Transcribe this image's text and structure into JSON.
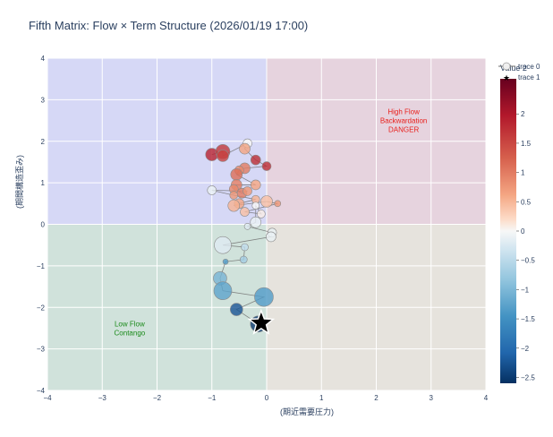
{
  "chart_data": {
    "type": "scatter",
    "title": "Fifth Matrix: Flow × Term Structure (2026/01/19 17:00)",
    "xlabel": "(期近需要圧力)",
    "ylabel": "(期間構造歪み)",
    "xlim": [
      -4,
      4
    ],
    "ylim": [
      -4,
      4
    ],
    "xticks": [
      "−4",
      "−3",
      "−2",
      "−1",
      "0",
      "1",
      "2",
      "3",
      "4"
    ],
    "yticks": [
      "−4",
      "−3",
      "−2",
      "−1",
      "0",
      "1",
      "2",
      "3",
      "4"
    ],
    "grid": true,
    "quadrants": [
      {
        "name": "upper-left",
        "x": [
          -4,
          0
        ],
        "y": [
          0,
          4
        ],
        "color": "#d6d8f6"
      },
      {
        "name": "upper-right",
        "x": [
          0,
          4
        ],
        "y": [
          0,
          4
        ],
        "color": "#e6d3de"
      },
      {
        "name": "lower-left",
        "x": [
          -4,
          0
        ],
        "y": [
          -4,
          0
        ],
        "color": "#d0e2db"
      },
      {
        "name": "lower-right",
        "x": [
          0,
          4
        ],
        "y": [
          -4,
          0
        ],
        "color": "#e6e3dd"
      }
    ],
    "annotations": [
      {
        "lines": [
          "High Flow",
          "Backwardation",
          "DANGER"
        ],
        "x": 2.5,
        "y": 2.5,
        "color": "#e8201c"
      },
      {
        "lines": [
          "Low Flow",
          "Contango"
        ],
        "x": -2.5,
        "y": -2.5,
        "color": "#1a8a1a"
      }
    ],
    "colorbar": {
      "title": "Value 2",
      "min": -2.6,
      "max": 2.6,
      "ticks": [
        "2",
        "1.5",
        "1",
        "0.5",
        "0",
        "−0.5",
        "−1",
        "−1.5",
        "−2",
        "−2.5"
      ],
      "tick_values": [
        2,
        1.5,
        1,
        0.5,
        0,
        -0.5,
        -1,
        -1.5,
        -2,
        -2.5
      ]
    },
    "legend": {
      "position": "top-right",
      "entries": [
        "trace 0",
        "trace 1"
      ]
    },
    "series": [
      {
        "name": "trace 0",
        "mode": "lines+markers",
        "line_color": "#6b6b6b",
        "points": [
          {
            "x": -1.0,
            "y": 1.68,
            "value": 1.8,
            "size": 14
          },
          {
            "x": -0.8,
            "y": 1.75,
            "value": 1.6,
            "size": 16
          },
          {
            "x": -0.8,
            "y": 1.65,
            "value": 1.5,
            "size": 13
          },
          {
            "x": -0.35,
            "y": 1.95,
            "value": 0.0,
            "size": 10
          },
          {
            "x": -0.4,
            "y": 1.82,
            "value": 0.7,
            "size": 12
          },
          {
            "x": -0.2,
            "y": 1.55,
            "value": 1.7,
            "size": 11
          },
          {
            "x": 0.0,
            "y": 1.4,
            "value": 1.7,
            "size": 10
          },
          {
            "x": -0.4,
            "y": 1.35,
            "value": 1.0,
            "size": 12
          },
          {
            "x": -0.5,
            "y": 1.3,
            "value": 0.9,
            "size": 10
          },
          {
            "x": -0.55,
            "y": 1.2,
            "value": 1.1,
            "size": 13
          },
          {
            "x": -0.2,
            "y": 0.95,
            "value": 0.7,
            "size": 11
          },
          {
            "x": -0.55,
            "y": 0.95,
            "value": 1.0,
            "size": 12
          },
          {
            "x": -0.6,
            "y": 0.85,
            "value": 0.9,
            "size": 10
          },
          {
            "x": -0.45,
            "y": 0.75,
            "value": 1.0,
            "size": 11
          },
          {
            "x": -0.35,
            "y": 0.8,
            "value": 0.8,
            "size": 10
          },
          {
            "x": -1.0,
            "y": 0.82,
            "value": -0.1,
            "size": 10
          },
          {
            "x": -0.6,
            "y": 0.7,
            "value": 0.8,
            "size": 9
          },
          {
            "x": -0.2,
            "y": 0.6,
            "value": 0.6,
            "size": 9
          },
          {
            "x": -0.5,
            "y": 0.5,
            "value": 0.7,
            "size": 11
          },
          {
            "x": -0.6,
            "y": 0.45,
            "value": 0.6,
            "size": 13
          },
          {
            "x": 0.0,
            "y": 0.55,
            "value": 0.5,
            "size": 13
          },
          {
            "x": 0.2,
            "y": 0.5,
            "value": 0.8,
            "size": 7
          },
          {
            "x": -0.4,
            "y": 0.3,
            "value": 0.5,
            "size": 10
          },
          {
            "x": -0.1,
            "y": 0.25,
            "value": 0.1,
            "size": 9
          },
          {
            "x": -0.2,
            "y": 0.45,
            "value": 0.0,
            "size": 8
          },
          {
            "x": -0.2,
            "y": 0.05,
            "value": -0.1,
            "size": 12
          },
          {
            "x": -0.35,
            "y": -0.05,
            "value": -0.2,
            "size": 7
          },
          {
            "x": 0.1,
            "y": -0.2,
            "value": -0.1,
            "size": 10
          },
          {
            "x": 0.08,
            "y": -0.3,
            "value": -0.1,
            "size": 11
          },
          {
            "x": -0.8,
            "y": -0.5,
            "value": -0.2,
            "size": 19
          },
          {
            "x": -0.4,
            "y": -0.55,
            "value": -0.4,
            "size": 8
          },
          {
            "x": -0.42,
            "y": -0.85,
            "value": -0.6,
            "size": 8
          },
          {
            "x": -0.75,
            "y": -0.9,
            "value": -1.2,
            "size": 6
          },
          {
            "x": -0.85,
            "y": -1.3,
            "value": -0.9,
            "size": 15
          },
          {
            "x": -0.8,
            "y": -1.6,
            "value": -1.1,
            "size": 20
          },
          {
            "x": -0.05,
            "y": -1.75,
            "value": -1.2,
            "size": 21
          },
          {
            "x": -0.55,
            "y": -2.05,
            "value": -2.2,
            "size": 14
          },
          {
            "x": -0.15,
            "y": -2.4,
            "value": -2.5,
            "size": 18
          }
        ]
      },
      {
        "name": "trace 1",
        "mode": "markers",
        "marker_symbol": "star",
        "points": [
          {
            "x": -0.1,
            "y": -2.38
          }
        ]
      }
    ]
  }
}
